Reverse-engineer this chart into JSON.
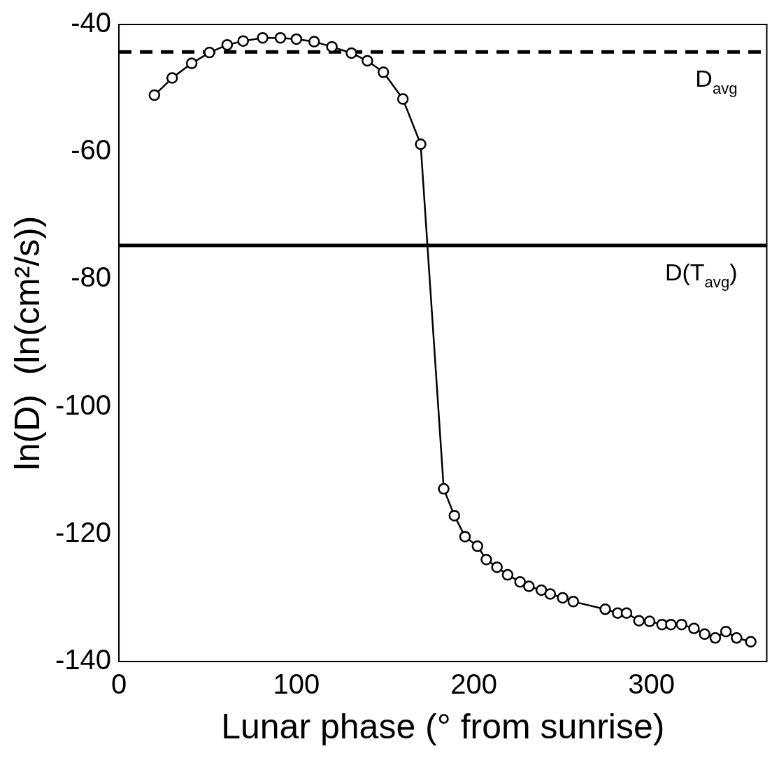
{
  "chart_data": {
    "type": "line",
    "xlabel": "Lunar phase (° from sunrise)",
    "ylabel": "ln(D)  (ln(cm²/s))",
    "x": [
      20,
      30,
      41,
      51,
      61,
      70,
      81,
      91,
      100,
      110,
      120,
      131,
      140,
      149,
      160,
      170,
      183,
      189,
      195,
      202,
      207,
      213,
      219,
      226,
      231,
      238,
      243,
      250,
      256,
      274,
      281,
      286,
      293,
      299,
      306,
      311,
      317,
      324,
      330,
      336,
      342,
      348,
      356
    ],
    "series": [
      {
        "color": "#000000",
        "values": [
          -51.1,
          -48.4,
          -46.1,
          -44.4,
          -43.2,
          -42.6,
          -42.1,
          -42.1,
          -42.3,
          -42.7,
          -43.5,
          -44.5,
          -45.7,
          -47.5,
          -51.7,
          -58.8,
          -112.9,
          -117.1,
          -120.4,
          -121.9,
          -124.0,
          -125.2,
          -126.4,
          -127.5,
          -128.2,
          -128.8,
          -129.4,
          -130.0,
          -130.6,
          -131.8,
          -132.4,
          -132.4,
          -133.6,
          -133.7,
          -134.2,
          -134.2,
          -134.2,
          -134.8,
          -135.7,
          -136.3,
          -135.3,
          -136.3,
          -136.9
        ]
      }
    ],
    "xlim": [
      0,
      365
    ],
    "xticks": [
      0,
      100,
      200,
      300
    ],
    "ylim": [
      -140,
      -40
    ],
    "yticks": [
      -140,
      -120,
      -100,
      -80,
      -60,
      -40
    ],
    "ref_lines": [
      {
        "axis": "y",
        "value": -44.3,
        "label": "D$_{avg}$",
        "line_style": "dashed",
        "color": "#000000"
      },
      {
        "axis": "y",
        "value": -74.7,
        "label": "D(T$_{avg}$)",
        "line_style": "solid",
        "color": "#000000"
      }
    ],
    "grid": false,
    "legend": false,
    "marker": "circle",
    "line_style": "solid"
  }
}
